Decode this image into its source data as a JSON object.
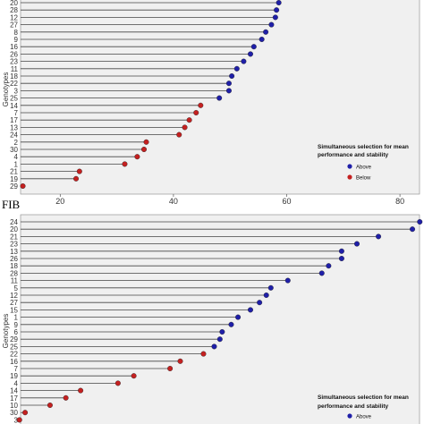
{
  "caption": "FIB",
  "colors": {
    "above": "#1f1fa8",
    "below": "#c42020",
    "panel": "#f0f0f0",
    "segment": "#444444"
  },
  "chart_data": [
    {
      "type": "scatter",
      "style": "lollipop",
      "ylabel": "Genotypes",
      "xlabel": "",
      "xlim": [
        13,
        83
      ],
      "xticks": [
        20,
        40,
        60,
        80
      ],
      "grid": false,
      "legend": {
        "placement": "bottom-right",
        "title_lines": [
          "Simultaneous selection for mean",
          "performance and stability"
        ],
        "entries": [
          {
            "label": "Above",
            "group": "above"
          },
          {
            "label": "Below",
            "group": "below"
          }
        ]
      },
      "genotypes": [
        "20",
        "28",
        "12",
        "27",
        "8",
        "9",
        "16",
        "26",
        "23",
        "11",
        "18",
        "22",
        "3",
        "25",
        "14",
        "7",
        "17",
        "13",
        "24",
        "2",
        "30",
        "4",
        "1",
        "21",
        "19",
        "29"
      ],
      "values": [
        58.6,
        58.2,
        58.0,
        57.3,
        56.3,
        55.6,
        54.2,
        53.6,
        52.4,
        51.2,
        50.3,
        49.8,
        49.8,
        48.1,
        44.8,
        44.0,
        42.8,
        42.0,
        41.0,
        35.2,
        34.8,
        33.6,
        31.4,
        23.4,
        22.8,
        13.4
      ],
      "groups": [
        "above",
        "above",
        "above",
        "above",
        "above",
        "above",
        "above",
        "above",
        "above",
        "above",
        "above",
        "above",
        "above",
        "above",
        "below",
        "below",
        "below",
        "below",
        "below",
        "below",
        "below",
        "below",
        "below",
        "below",
        "below",
        "below"
      ]
    },
    {
      "type": "scatter",
      "style": "lollipop",
      "ylabel": "Genotypes",
      "xlabel": "",
      "legend": {
        "placement": "bottom-right",
        "title_lines": [
          "Simultaneous selection for mean",
          "performance and stability"
        ],
        "entries": [
          {
            "label": "Above",
            "group": "above"
          }
        ]
      },
      "genotypes": [
        "24",
        "20",
        "21",
        "23",
        "13",
        "26",
        "18",
        "28",
        "11",
        "5",
        "12",
        "27",
        "15",
        "1",
        "9",
        "6",
        "29",
        "25",
        "22",
        "16",
        "7",
        "19",
        "4",
        "14",
        "17",
        "10",
        "30",
        "3"
      ],
      "values": [
        83.5,
        82.2,
        76.2,
        72.4,
        69.7,
        69.7,
        67.4,
        66.2,
        60.2,
        57.2,
        56.4,
        55.2,
        53.6,
        51.4,
        50.2,
        48.6,
        48.2,
        47.2,
        45.3,
        41.2,
        39.4,
        33.0,
        30.2,
        23.6,
        21.0,
        18.2,
        13.8,
        12.8
      ],
      "groups": [
        "above",
        "above",
        "above",
        "above",
        "above",
        "above",
        "above",
        "above",
        "above",
        "above",
        "above",
        "above",
        "above",
        "above",
        "above",
        "above",
        "above",
        "above",
        "below",
        "below",
        "below",
        "below",
        "below",
        "below",
        "below",
        "below",
        "below",
        "below"
      ]
    }
  ]
}
